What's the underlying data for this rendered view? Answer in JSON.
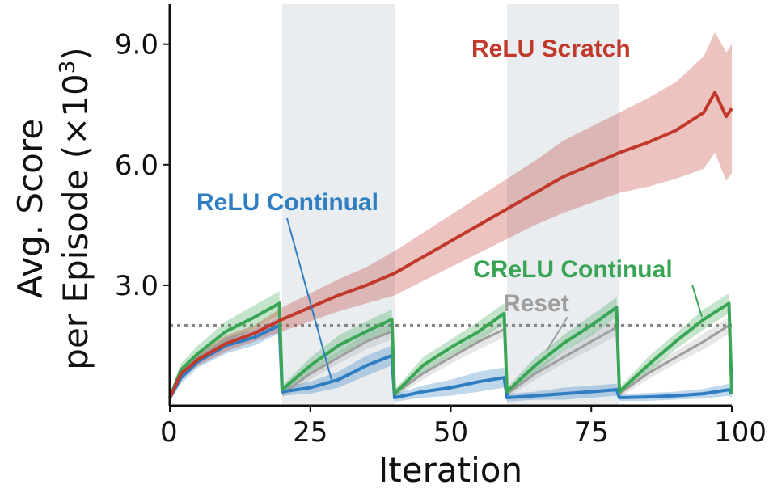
{
  "chart_data": {
    "type": "line",
    "xlabel": "Iteration",
    "ylabel_line1": "Avg. Score",
    "ylabel_line2_prefix": "per Episode (×10",
    "ylabel_sup": "3",
    "ylabel_line2_suffix": ")",
    "xlim": [
      0,
      100
    ],
    "ylim": [
      0,
      10
    ],
    "xticks": [
      0,
      25,
      50,
      75,
      100
    ],
    "xtick_labels": [
      "0",
      "25",
      "50",
      "75",
      "100"
    ],
    "yticks": [
      3.0,
      6.0,
      9.0
    ],
    "ytick_labels": [
      "3.0",
      "6.0",
      "9.0"
    ],
    "grid": false,
    "shaded_x_ranges": [
      [
        20,
        40
      ],
      [
        60,
        80
      ]
    ],
    "reset_level": 2.0,
    "series": [
      {
        "name": "ReLU Scratch",
        "color": "#c0392b",
        "x": [
          0,
          2,
          5,
          10,
          15,
          20,
          25,
          30,
          35,
          40,
          45,
          50,
          55,
          60,
          65,
          70,
          75,
          80,
          85,
          90,
          95,
          97,
          99,
          100
        ],
        "y": [
          0.2,
          0.8,
          1.15,
          1.55,
          1.8,
          2.15,
          2.45,
          2.75,
          3.0,
          3.3,
          3.7,
          4.1,
          4.5,
          4.9,
          5.3,
          5.7,
          6.0,
          6.3,
          6.55,
          6.85,
          7.3,
          7.8,
          7.2,
          7.4
        ],
        "band": [
          0.1,
          0.15,
          0.15,
          0.2,
          0.2,
          0.3,
          0.35,
          0.4,
          0.45,
          0.55,
          0.6,
          0.65,
          0.7,
          0.75,
          0.8,
          0.9,
          0.95,
          1.0,
          1.1,
          1.2,
          1.4,
          1.5,
          1.6,
          1.6
        ]
      },
      {
        "name": "ReLU Continual",
        "color": "#2f7ec1",
        "x": [
          0,
          2,
          5,
          10,
          15,
          19.5,
          20,
          25,
          30,
          35,
          39.5,
          40,
          45,
          50,
          55,
          59.5,
          60,
          65,
          70,
          75,
          79.5,
          80,
          85,
          90,
          95,
          99.5,
          100
        ],
        "y": [
          0.2,
          0.7,
          1.1,
          1.5,
          1.7,
          2.0,
          0.35,
          0.45,
          0.65,
          1.0,
          1.25,
          0.2,
          0.35,
          0.45,
          0.6,
          0.7,
          0.2,
          0.25,
          0.3,
          0.35,
          0.4,
          0.2,
          0.22,
          0.25,
          0.3,
          0.4,
          0.3
        ],
        "band": [
          0.1,
          0.15,
          0.15,
          0.2,
          0.2,
          0.2,
          0.1,
          0.15,
          0.2,
          0.25,
          0.25,
          0.1,
          0.15,
          0.2,
          0.25,
          0.25,
          0.1,
          0.1,
          0.15,
          0.15,
          0.15,
          0.08,
          0.1,
          0.1,
          0.12,
          0.15,
          0.1
        ]
      },
      {
        "name": "CReLU Continual",
        "color": "#3aa655",
        "x": [
          0,
          2,
          5,
          10,
          15,
          19.5,
          20,
          25,
          30,
          35,
          39.5,
          40,
          45,
          50,
          55,
          59.5,
          60,
          65,
          70,
          75,
          79.5,
          80,
          85,
          90,
          95,
          99.5,
          100
        ],
        "y": [
          0.2,
          0.9,
          1.3,
          1.85,
          2.2,
          2.55,
          0.4,
          1.0,
          1.5,
          1.85,
          2.15,
          0.3,
          1.0,
          1.45,
          1.85,
          2.3,
          0.35,
          1.0,
          1.55,
          2.0,
          2.45,
          0.35,
          1.0,
          1.6,
          2.15,
          2.55,
          0.3
        ],
        "band": [
          0.1,
          0.15,
          0.2,
          0.25,
          0.3,
          0.3,
          0.1,
          0.2,
          0.25,
          0.25,
          0.25,
          0.1,
          0.2,
          0.2,
          0.25,
          0.25,
          0.1,
          0.2,
          0.2,
          0.25,
          0.25,
          0.1,
          0.2,
          0.2,
          0.25,
          0.25,
          0.1
        ]
      },
      {
        "name": "Reset",
        "color": "#9e9e9e",
        "x": [
          20,
          25,
          30,
          35,
          39.5,
          40,
          45,
          50,
          55,
          59.5,
          60,
          65,
          70,
          75,
          79.5,
          80,
          85,
          90,
          95,
          99.5,
          100
        ],
        "y": [
          0.3,
          0.8,
          1.2,
          1.6,
          1.85,
          0.3,
          0.8,
          1.2,
          1.6,
          1.9,
          0.3,
          0.8,
          1.2,
          1.6,
          1.95,
          0.3,
          0.8,
          1.2,
          1.6,
          2.0,
          0.3
        ],
        "band": [
          0.1,
          0.15,
          0.15,
          0.2,
          0.2,
          0.1,
          0.15,
          0.15,
          0.2,
          0.2,
          0.1,
          0.15,
          0.15,
          0.2,
          0.2,
          0.1,
          0.15,
          0.15,
          0.2,
          0.2,
          0.1
        ]
      }
    ],
    "annotations": [
      {
        "text": "ReLU Scratch",
        "color": "#c0392b"
      },
      {
        "text": "ReLU Continual",
        "color": "#2f7ec1"
      },
      {
        "text": "CReLU Continual",
        "color": "#3aa655"
      },
      {
        "text": "Reset",
        "color": "#9e9e9e"
      }
    ]
  }
}
